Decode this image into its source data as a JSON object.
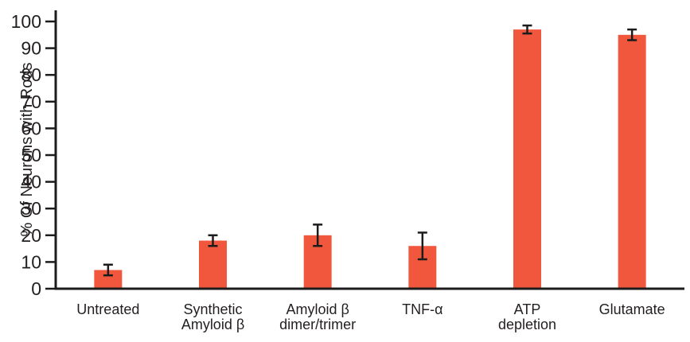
{
  "figure": {
    "background_color": "#ffffff"
  },
  "chart_data": {
    "type": "bar",
    "title": "",
    "xlabel": "",
    "ylabel": "% Of Neurons with Rods",
    "ylim": [
      0,
      100
    ],
    "ytick_step": 10,
    "grid": false,
    "legend_position": "none",
    "categories": [
      "Untreated",
      "Synthetic Amyloid β",
      "Amyloid β dimer/trimer",
      "TNF-α",
      "ATP depletion",
      "Glutamate"
    ],
    "category_label_lines": [
      [
        "Untreated"
      ],
      [
        "Synthetic",
        "Amyloid β"
      ],
      [
        "Amyloid β",
        "dimer/trimer"
      ],
      [
        "TNF-α"
      ],
      [
        "ATP",
        "depletion"
      ],
      [
        "Glutamate"
      ]
    ],
    "values": [
      7,
      18,
      20,
      16,
      97,
      95
    ],
    "error_bars": [
      2,
      2,
      4,
      5,
      1.5,
      2
    ],
    "bar_color": "#F1573D",
    "axis_color": "#1c1c1c",
    "error_bar_color": "#1c1c1c",
    "text_color": "#231f20"
  }
}
